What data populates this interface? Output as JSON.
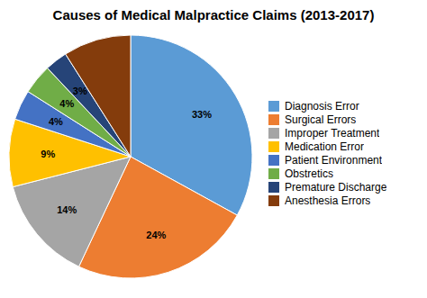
{
  "chart_data": {
    "type": "pie",
    "title": "Causes of Medical Malpractice Claims (2013-2017)",
    "categories": [
      "Diagnosis Error",
      "Surgical Errors",
      "Improper Treatment",
      "Medication Error",
      "Patient Environment",
      "Obstretics",
      "Premature Discharge",
      "Anesthesia Errors"
    ],
    "values": [
      33,
      24,
      14,
      9,
      4,
      4,
      3,
      9
    ],
    "value_labels": [
      "33%",
      "24%",
      "14%",
      "9%",
      "4%",
      "4%",
      "3%",
      null
    ],
    "colors": [
      "#5B9BD5",
      "#ED7D31",
      "#A5A5A5",
      "#FFC000",
      "#4472C4",
      "#70AD47",
      "#264478",
      "#843C0C"
    ],
    "data_labels": true,
    "legend": "right"
  }
}
